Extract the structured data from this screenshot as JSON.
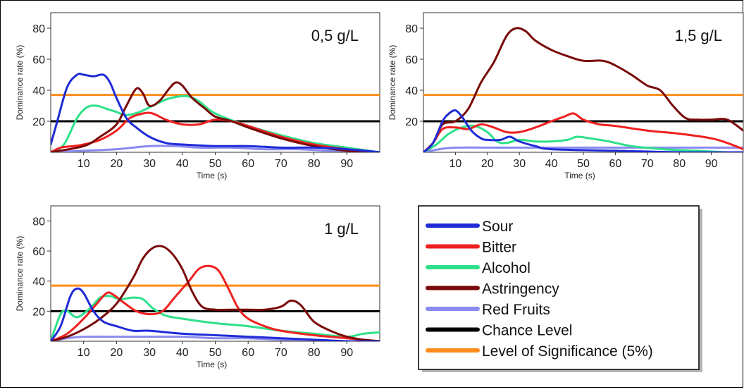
{
  "legend": {
    "entries": [
      {
        "label": "Sour",
        "color": "#1f2bd6"
      },
      {
        "label": "Bitter",
        "color": "#f02020"
      },
      {
        "label": "Alcohol",
        "color": "#2ee08a"
      },
      {
        "label": "Astringency",
        "color": "#7a0a0a"
      },
      {
        "label": "Red Fruits",
        "color": "#8a8af0"
      },
      {
        "label": "Chance Level",
        "color": "#000000"
      },
      {
        "label": "Level of Significance (5%)",
        "color": "#ff8c1a"
      }
    ]
  },
  "chart_data": [
    {
      "type": "line",
      "title": "0,5 g/L",
      "xlabel": "Time (s)",
      "ylabel": "Dominance rate (%)",
      "xlim": [
        0,
        100
      ],
      "ylim": [
        0,
        90
      ],
      "xticks": [
        "10",
        "20",
        "30",
        "40",
        "50",
        "60",
        "70",
        "80",
        "90"
      ],
      "yticks": [
        "20",
        "40",
        "60",
        "80"
      ],
      "chance_level": 20,
      "significance_level": 37,
      "series": [
        {
          "name": "Sour",
          "x": [
            0,
            2,
            5,
            8,
            10,
            13,
            16,
            18,
            20,
            23,
            26,
            30,
            35,
            40,
            50,
            60,
            70,
            80,
            90,
            100
          ],
          "y": [
            5,
            20,
            42,
            50,
            50,
            49,
            50,
            45,
            35,
            22,
            16,
            10,
            6,
            5,
            4,
            4,
            3,
            3,
            2,
            0
          ]
        },
        {
          "name": "Bitter",
          "x": [
            0,
            3,
            7,
            10,
            15,
            20,
            24,
            28,
            31,
            35,
            40,
            45,
            50,
            55,
            60,
            70,
            80,
            90,
            100
          ],
          "y": [
            0,
            3,
            4,
            5,
            8,
            14,
            22,
            25,
            25,
            21,
            18,
            18,
            21,
            20,
            17,
            10,
            5,
            2,
            0
          ]
        },
        {
          "name": "Alcohol",
          "x": [
            0,
            4,
            8,
            11,
            14,
            17,
            20,
            23,
            27,
            31,
            35,
            39,
            42,
            45,
            50,
            60,
            70,
            80,
            90,
            100
          ],
          "y": [
            0,
            5,
            22,
            29,
            30,
            28,
            26,
            24,
            26,
            30,
            34,
            36,
            36,
            33,
            25,
            17,
            11,
            6,
            3,
            0
          ]
        },
        {
          "name": "Astringency",
          "x": [
            0,
            10,
            15,
            20,
            23,
            26,
            28,
            30,
            33,
            36,
            38,
            40,
            43,
            47,
            50,
            55,
            60,
            70,
            80,
            90,
            100
          ],
          "y": [
            0,
            4,
            10,
            18,
            30,
            41,
            38,
            30,
            33,
            41,
            45,
            43,
            35,
            28,
            23,
            20,
            16,
            9,
            4,
            1,
            0
          ]
        },
        {
          "name": "Red Fruits",
          "x": [
            0,
            10,
            20,
            30,
            38,
            45,
            55,
            65,
            75,
            85,
            95,
            100
          ],
          "y": [
            0,
            1,
            2,
            4,
            4,
            3,
            3,
            2,
            2,
            1,
            1,
            0
          ]
        }
      ]
    },
    {
      "type": "line",
      "title": "1,5 g/L",
      "xlabel": "Time (s)",
      "ylabel": "Dominance rate (%)",
      "xlim": [
        0,
        100
      ],
      "ylim": [
        0,
        90
      ],
      "xticks": [
        "10",
        "20",
        "30",
        "40",
        "50",
        "60",
        "70",
        "80",
        "90"
      ],
      "yticks": [
        "20",
        "40",
        "60",
        "80"
      ],
      "chance_level": 20,
      "significance_level": 37,
      "series": [
        {
          "name": "Sour",
          "x": [
            0,
            3,
            6,
            8,
            10,
            12,
            15,
            18,
            20,
            24,
            27,
            30,
            35,
            40,
            60,
            80,
            100
          ],
          "y": [
            0,
            6,
            20,
            25,
            27,
            23,
            14,
            9,
            8,
            8,
            10,
            7,
            4,
            2,
            1,
            0,
            0
          ]
        },
        {
          "name": "Bitter",
          "x": [
            0,
            3,
            6,
            10,
            14,
            18,
            22,
            26,
            30,
            35,
            40,
            44,
            47,
            50,
            55,
            60,
            70,
            80,
            90,
            95,
            100
          ],
          "y": [
            0,
            6,
            15,
            16,
            15,
            18,
            16,
            13,
            13,
            16,
            20,
            23,
            25,
            21,
            18,
            17,
            14,
            12,
            9,
            6,
            2
          ]
        },
        {
          "name": "Alcohol",
          "x": [
            0,
            4,
            8,
            12,
            16,
            20,
            23,
            26,
            30,
            35,
            40,
            45,
            48,
            52,
            58,
            65,
            75,
            85,
            95,
            100
          ],
          "y": [
            0,
            5,
            12,
            16,
            17,
            13,
            7,
            6,
            8,
            7,
            7,
            8,
            10,
            9,
            7,
            4,
            2,
            1,
            0,
            0
          ]
        },
        {
          "name": "Astringency",
          "x": [
            0,
            3,
            6,
            10,
            14,
            18,
            22,
            26,
            29,
            32,
            35,
            40,
            45,
            50,
            56,
            60,
            65,
            70,
            74,
            78,
            82,
            86,
            90,
            95,
            100
          ],
          "y": [
            0,
            6,
            18,
            20,
            28,
            45,
            58,
            75,
            80,
            78,
            72,
            66,
            62,
            59,
            59,
            56,
            50,
            43,
            40,
            30,
            22,
            21,
            21,
            21,
            14
          ]
        },
        {
          "name": "Red Fruits",
          "x": [
            0,
            5,
            10,
            20,
            30,
            40,
            50,
            60,
            70,
            80,
            90,
            100
          ],
          "y": [
            0,
            2,
            3,
            3,
            3,
            3,
            3,
            3,
            3,
            3,
            3,
            3
          ]
        }
      ]
    },
    {
      "type": "line",
      "title": "1 g/L",
      "xlabel": "Time (s)",
      "ylabel": "Dominance rate (%)",
      "xlim": [
        0,
        100
      ],
      "ylim": [
        0,
        90
      ],
      "xticks": [
        "10",
        "20",
        "30",
        "40",
        "50",
        "60",
        "70",
        "80",
        "90"
      ],
      "yticks": [
        "20",
        "40",
        "60",
        "80"
      ],
      "chance_level": 20,
      "significance_level": 37,
      "series": [
        {
          "name": "Sour",
          "x": [
            0,
            3,
            6,
            8,
            10,
            13,
            16,
            20,
            25,
            30,
            40,
            50,
            60,
            70,
            80,
            90,
            100
          ],
          "y": [
            0,
            10,
            30,
            35,
            32,
            20,
            13,
            10,
            7,
            7,
            5,
            4,
            3,
            2,
            1,
            0,
            0
          ]
        },
        {
          "name": "Bitter",
          "x": [
            0,
            5,
            10,
            14,
            17,
            19,
            22,
            26,
            30,
            34,
            38,
            42,
            45,
            48,
            51,
            54,
            57,
            60,
            65,
            70,
            80,
            90,
            100
          ],
          "y": [
            0,
            5,
            15,
            25,
            32,
            31,
            26,
            20,
            18,
            20,
            30,
            40,
            48,
            50,
            47,
            35,
            22,
            15,
            10,
            7,
            4,
            2,
            0
          ]
        },
        {
          "name": "Alcohol",
          "x": [
            0,
            3,
            5,
            8,
            12,
            15,
            18,
            21,
            25,
            28,
            31,
            35,
            40,
            50,
            60,
            70,
            80,
            90,
            95,
            100
          ],
          "y": [
            0,
            18,
            20,
            16,
            22,
            29,
            30,
            28,
            29,
            28,
            22,
            17,
            15,
            12,
            10,
            7,
            5,
            3,
            5,
            6
          ]
        },
        {
          "name": "Astringency",
          "x": [
            0,
            5,
            10,
            15,
            20,
            25,
            28,
            31,
            34,
            37,
            40,
            43,
            46,
            50,
            55,
            60,
            65,
            70,
            73,
            76,
            80,
            85,
            90,
            95,
            100
          ],
          "y": [
            0,
            3,
            8,
            15,
            25,
            42,
            55,
            62,
            63,
            58,
            48,
            33,
            23,
            21,
            21,
            21,
            21,
            23,
            27,
            24,
            13,
            7,
            3,
            1,
            0
          ]
        },
        {
          "name": "Red Fruits",
          "x": [
            0,
            5,
            10,
            20,
            30,
            40,
            50,
            60,
            70,
            80,
            90,
            100
          ],
          "y": [
            0,
            2,
            3,
            3,
            3,
            3,
            2,
            2,
            1,
            1,
            0,
            0
          ]
        }
      ]
    }
  ]
}
